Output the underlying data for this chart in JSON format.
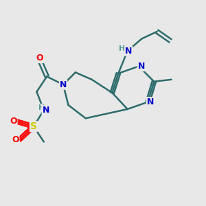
{
  "background_color": "#e8e8e8",
  "bond_color": "#2d6b6b",
  "bond_width": 1.8,
  "atom_colors": {
    "N": "#0000cc",
    "O": "#ff0000",
    "S": "#cccc00",
    "C": "#2d6b6b",
    "H_label": "#5a9a9a"
  },
  "figsize": [
    3.0,
    3.0
  ],
  "dpi": 100
}
